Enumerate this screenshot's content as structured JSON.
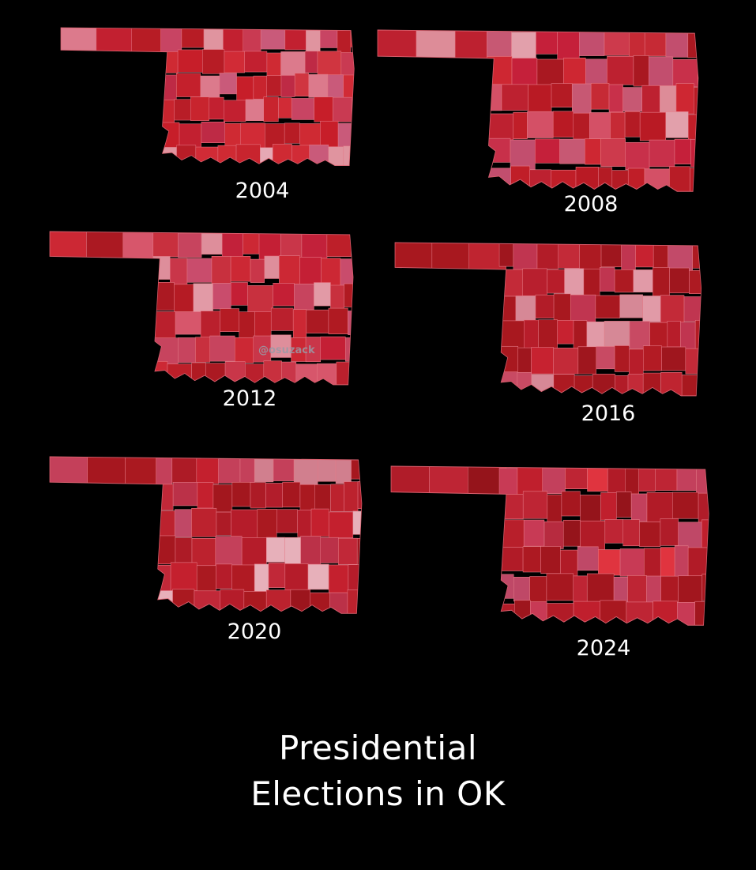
{
  "maps": [
    {
      "year": "2004",
      "shades": [
        "#c4202c",
        "#c8242e",
        "#b81d27",
        "#d03540",
        "#c95a7a",
        "#e0949f",
        "#c84463",
        "#cf2a33",
        "#b71c25",
        "#dc7a8c",
        "#c93a52",
        "#d12b36",
        "#c71e29",
        "#be2a45",
        "#e6a8b4",
        "#c22030"
      ]
    },
    {
      "year": "2008",
      "shades": [
        "#c01e28",
        "#b91a24",
        "#c62a35",
        "#c24e6e",
        "#dd8c98",
        "#b81c26",
        "#cd3a4c",
        "#c5203a",
        "#a91821",
        "#e2a0ab",
        "#c8304a",
        "#bd2130",
        "#c75873",
        "#ce2732",
        "#b41b24",
        "#d45066"
      ]
    },
    {
      "year": "2012",
      "shades": [
        "#bd1f29",
        "#b51b24",
        "#c8303e",
        "#c94c6c",
        "#e29aa6",
        "#b21a23",
        "#c93649",
        "#c41f35",
        "#ab1922",
        "#de8e9b",
        "#c7445e",
        "#ba202d",
        "#cc2834",
        "#b01a22",
        "#d7566b",
        "#c2213a"
      ]
    },
    {
      "year": "2016",
      "shades": [
        "#b31b24",
        "#a91820",
        "#bf2430",
        "#c24a69",
        "#e19aa7",
        "#ad1a22",
        "#c32a38",
        "#b71d2a",
        "#9f161e",
        "#d68896",
        "#c03550",
        "#b21c28",
        "#c72230",
        "#a8181f",
        "#c84a63",
        "#b81f2e"
      ]
    },
    {
      "year": "2020",
      "shades": [
        "#b01a23",
        "#a6171f",
        "#bc222e",
        "#c04866",
        "#e7b0ba",
        "#aa1920",
        "#c12838",
        "#b51c2a",
        "#9c151d",
        "#d17f8e",
        "#bb3148",
        "#ad1b26",
        "#c4202e",
        "#a3171e",
        "#c4405a",
        "#b21d2b"
      ]
    },
    {
      "year": "2024",
      "shades": [
        "#ad1922",
        "#a2161e",
        "#b81f2b",
        "#bf4867",
        "#c83a55",
        "#a6171f",
        "#be2534",
        "#e0343f",
        "#95141b",
        "#b72b3f",
        "#b11b27",
        "#a91820",
        "#c01f2d",
        "#9e161d",
        "#c3405c",
        "#b01c29"
      ]
    }
  ],
  "border_color": "#e57b88",
  "watermark": "@osuzack",
  "title": {
    "line1": "Presidential",
    "line2": "Elections in OK"
  }
}
